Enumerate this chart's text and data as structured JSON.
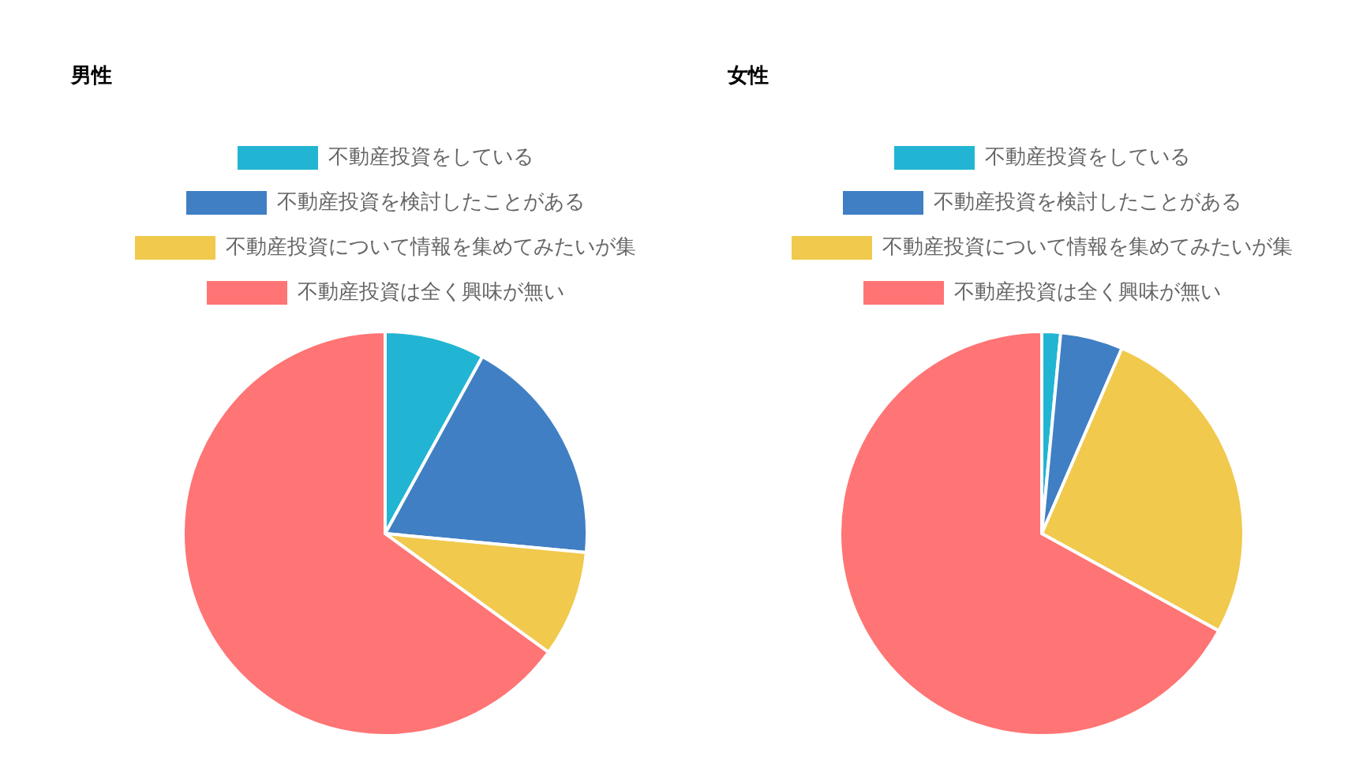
{
  "chart_data": [
    {
      "type": "pie",
      "title": "男性",
      "categories": [
        "不動産投資をしている",
        "不動産投資を検討したことがある",
        "不動産投資について情報を集めてみたいが集",
        "不動産投資は全く興味が無い"
      ],
      "values": [
        8,
        18.5,
        8.5,
        65
      ],
      "colors": [
        "#22b5d3",
        "#407fc3",
        "#f0c94d",
        "#ff7474"
      ],
      "legend": "top"
    },
    {
      "type": "pie",
      "title": "女性",
      "categories": [
        "不動産投資をしている",
        "不動産投資を検討したことがある",
        "不動産投資について情報を集めてみたいが集",
        "不動産投資は全く興味が無い"
      ],
      "values": [
        1.5,
        5,
        26.5,
        67
      ],
      "colors": [
        "#22b5d3",
        "#407fc3",
        "#f0c94d",
        "#ff7474"
      ],
      "legend": "top"
    }
  ]
}
